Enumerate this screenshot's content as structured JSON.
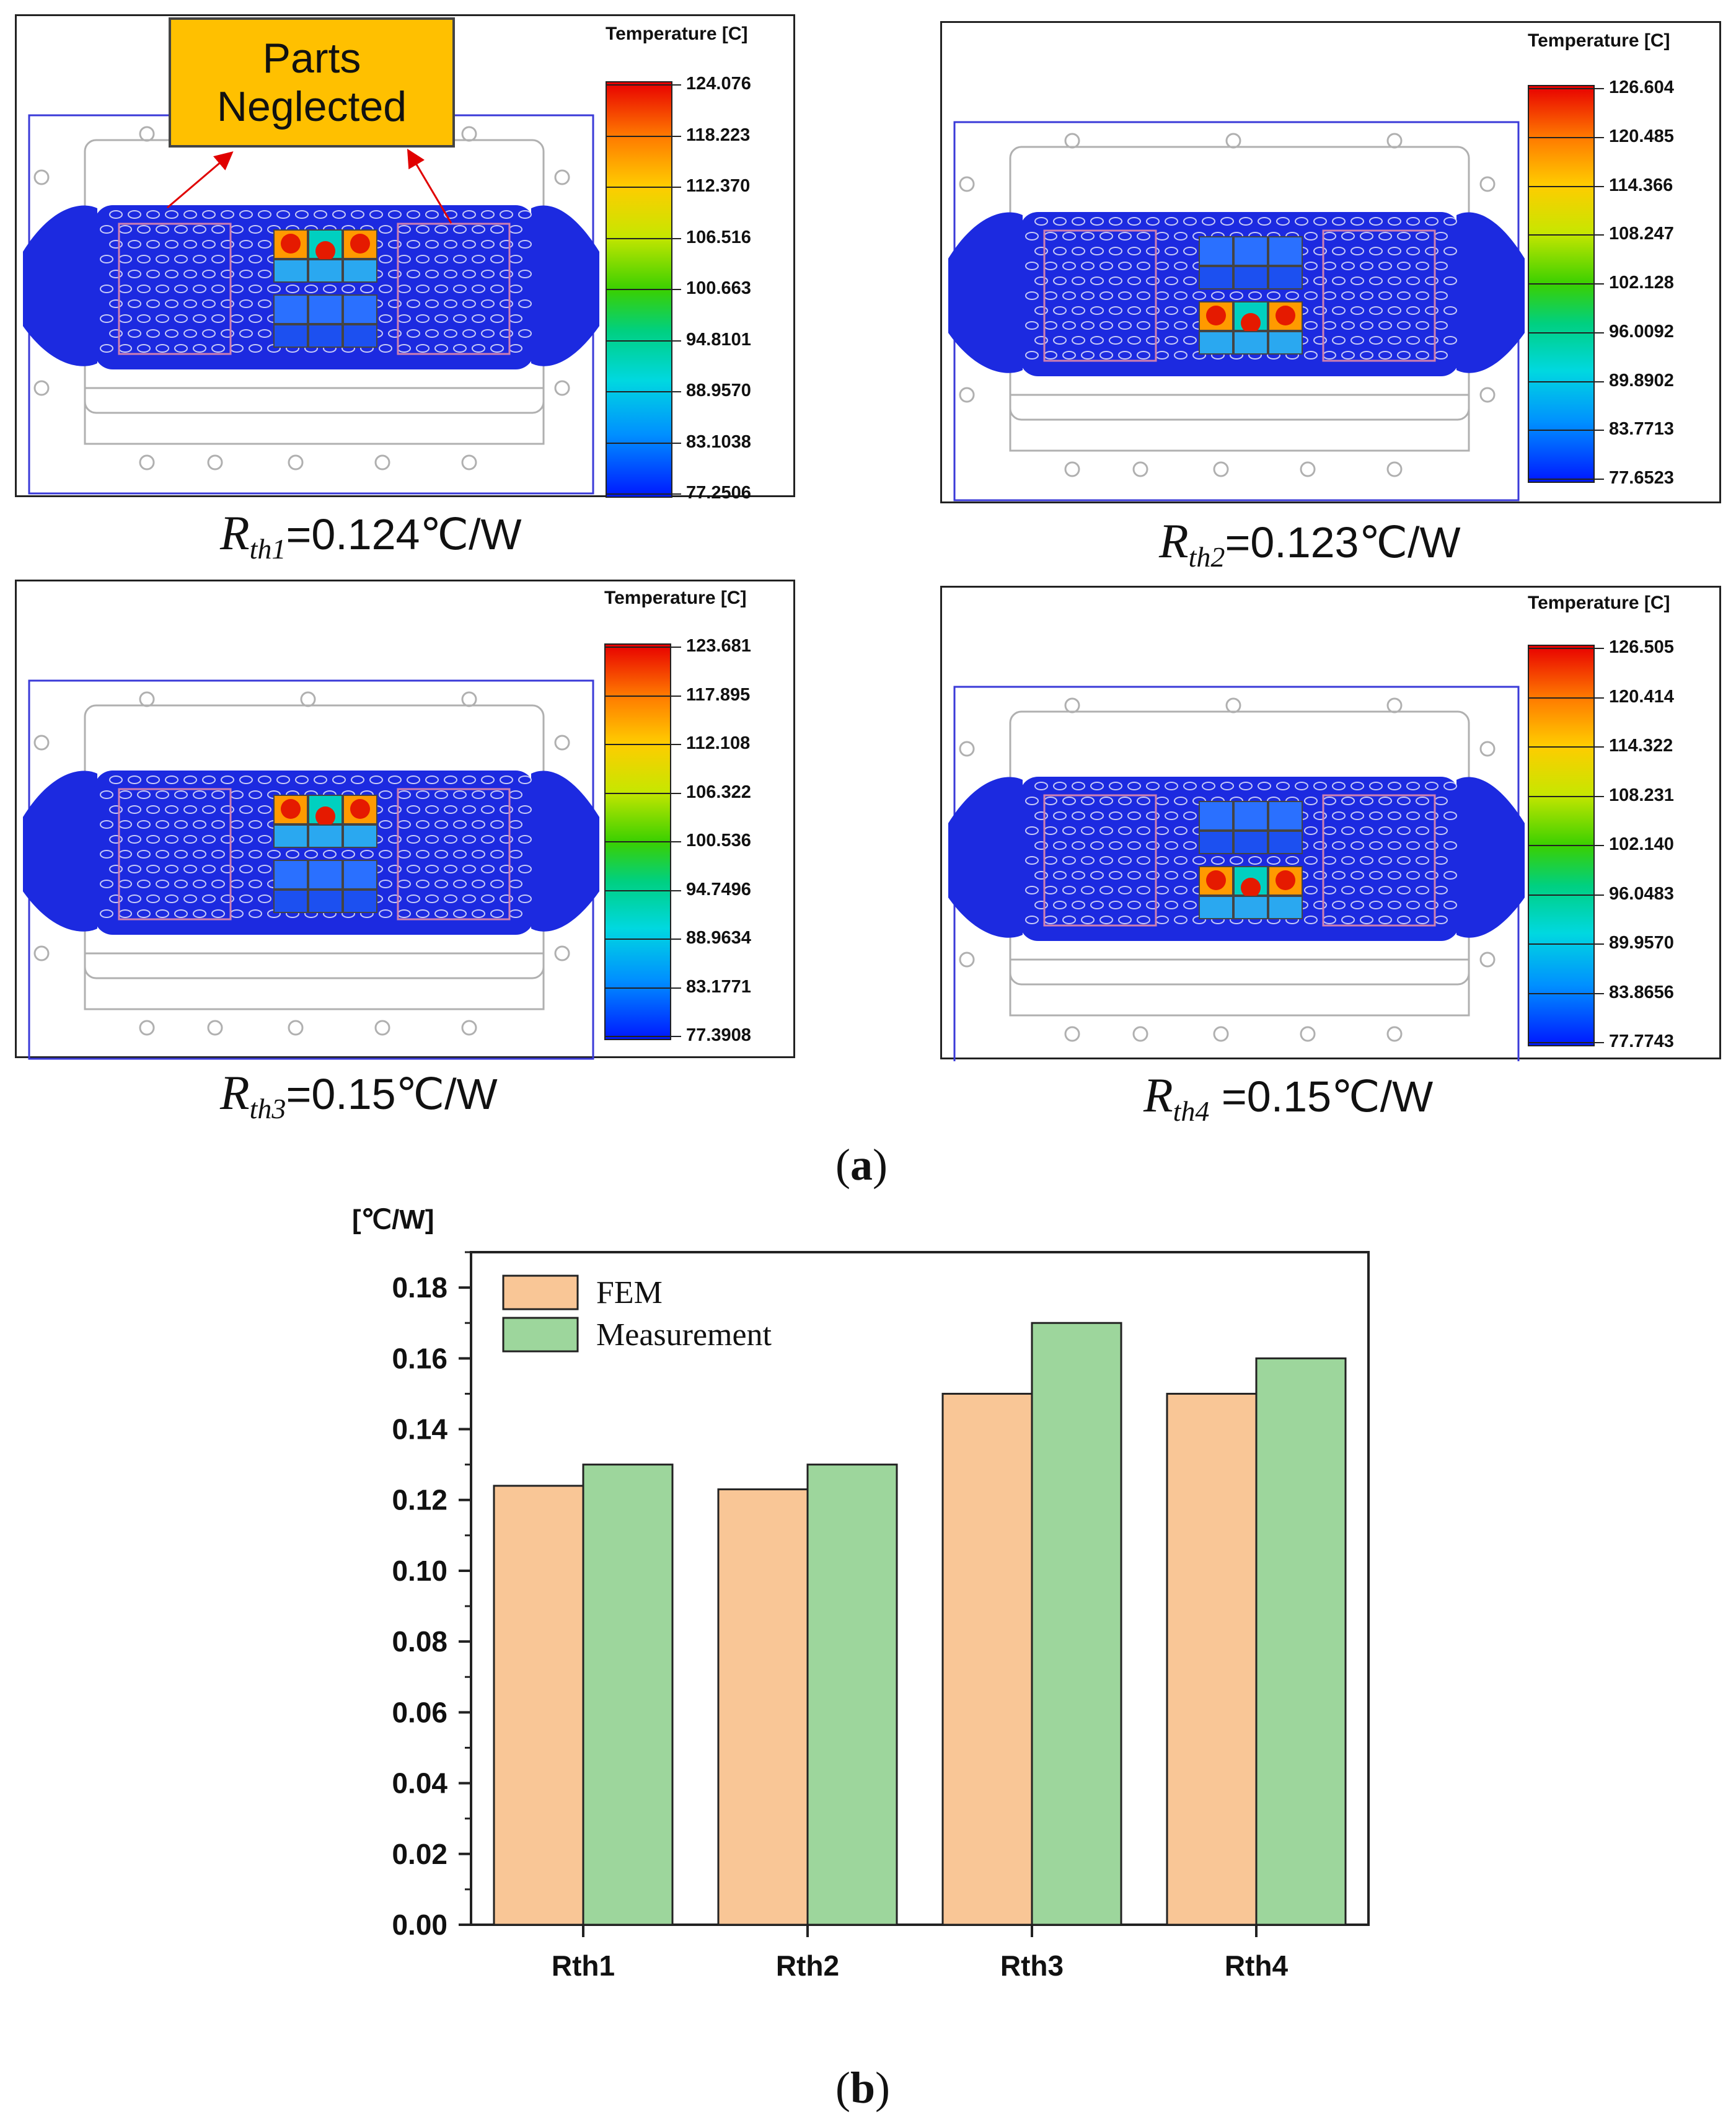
{
  "panel_a": {
    "caption_open": "(",
    "caption_letter": "a",
    "caption_close": ")",
    "callout_line1": "Parts",
    "callout_line2": "Neglected",
    "panels": [
      {
        "colorbar_title": "Temperature [C]",
        "ticks": [
          "124.076",
          "118.223",
          "112.370",
          "106.516",
          "100.663",
          "94.8101",
          "88.9570",
          "83.1038",
          "77.2506"
        ],
        "r_symbol": "R",
        "r_sub": "th1",
        "r_value": "=0.124℃/W"
      },
      {
        "colorbar_title": "Temperature [C]",
        "ticks": [
          "126.604",
          "120.485",
          "114.366",
          "108.247",
          "102.128",
          "96.0092",
          "89.8902",
          "83.7713",
          "77.6523"
        ],
        "r_symbol": "R",
        "r_sub": "th2",
        "r_value": "=0.123℃/W"
      },
      {
        "colorbar_title": "Temperature [C]",
        "ticks": [
          "123.681",
          "117.895",
          "112.108",
          "106.322",
          "100.536",
          "94.7496",
          "88.9634",
          "83.1771",
          "77.3908"
        ],
        "r_symbol": "R",
        "r_sub": "th3",
        "r_value": "=0.15℃/W"
      },
      {
        "colorbar_title": "Temperature [C]",
        "ticks": [
          "126.505",
          "120.414",
          "114.322",
          "108.231",
          "102.140",
          "96.0483",
          "89.9570",
          "83.8656",
          "77.7743"
        ],
        "r_symbol": "R",
        "r_sub": "th4",
        "r_value": " =0.15℃/W"
      }
    ]
  },
  "panel_b": {
    "caption_open": "(",
    "caption_letter": "b",
    "caption_close": ")"
  },
  "chart_data": {
    "type": "bar",
    "categories": [
      "Rth1",
      "Rth2",
      "Rth3",
      "Rth4"
    ],
    "series": [
      {
        "name": "FEM",
        "values": [
          0.124,
          0.123,
          0.15,
          0.15
        ],
        "color": "#f9c696"
      },
      {
        "name": "Measurement",
        "values": [
          0.13,
          0.13,
          0.17,
          0.16
        ],
        "color": "#9dd69c"
      }
    ],
    "ylabel": "[℃/W]",
    "ylim": [
      0,
      0.19
    ],
    "yticks": [
      "0.00",
      "0.02",
      "0.04",
      "0.06",
      "0.08",
      "0.10",
      "0.12",
      "0.14",
      "0.16",
      "0.18"
    ],
    "ytick_values": [
      0,
      0.02,
      0.04,
      0.06,
      0.08,
      0.1,
      0.12,
      0.14,
      0.16,
      0.18
    ],
    "legend_position": "top-left",
    "grid": false
  }
}
